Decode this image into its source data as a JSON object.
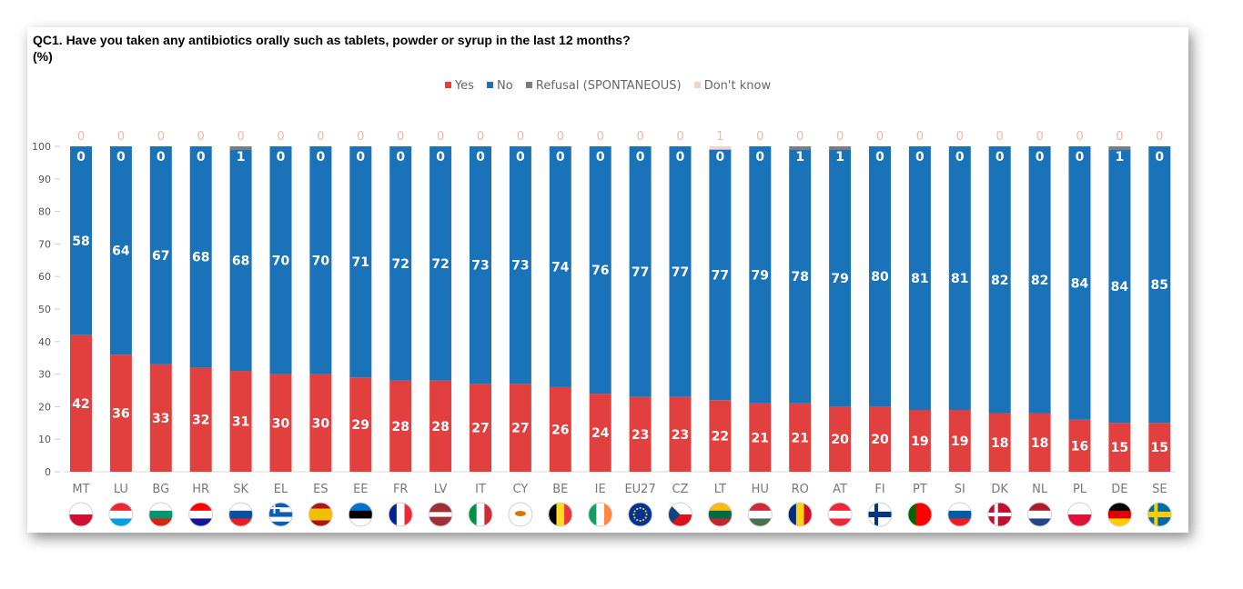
{
  "title_line1": "QC1. Have you taken any antibiotics orally such as tablets, powder or syrup in the last 12 months?",
  "title_line2": "(%)",
  "colors": {
    "yes": "#e1403f",
    "no": "#1a72b8",
    "refusal": "#7d7d7d",
    "dont_know": "#f2d2cb"
  },
  "chart_data": {
    "type": "bar",
    "stacked": true,
    "orientation": "vertical",
    "ylim": [
      0,
      100
    ],
    "yticks": [
      0,
      10,
      20,
      30,
      40,
      50,
      60,
      70,
      80,
      90,
      100
    ],
    "legend_position": "top-center",
    "categories": [
      "MT",
      "LU",
      "BG",
      "HR",
      "SK",
      "EL",
      "ES",
      "EE",
      "FR",
      "LV",
      "IT",
      "CY",
      "BE",
      "IE",
      "EU27",
      "CZ",
      "LT",
      "HU",
      "RO",
      "AT",
      "FI",
      "PT",
      "SI",
      "DK",
      "NL",
      "PL",
      "DE",
      "SE"
    ],
    "flags": [
      "Malta",
      "Luxembourg",
      "Bulgaria",
      "Croatia",
      "Slovakia",
      "Greece",
      "Spain",
      "Estonia",
      "France",
      "Latvia",
      "Italy",
      "Cyprus",
      "Belgium",
      "Ireland",
      "European Union",
      "Czechia",
      "Lithuania",
      "Hungary",
      "Romania",
      "Austria",
      "Finland",
      "Portugal",
      "Slovenia",
      "Denmark",
      "Netherlands",
      "Poland",
      "Germany",
      "Sweden"
    ],
    "series": [
      {
        "name": "Yes",
        "values": [
          42,
          36,
          33,
          32,
          31,
          30,
          30,
          29,
          28,
          28,
          27,
          27,
          26,
          24,
          23,
          23,
          22,
          21,
          21,
          20,
          20,
          19,
          19,
          18,
          18,
          16,
          15,
          15
        ]
      },
      {
        "name": "No",
        "values": [
          58,
          64,
          67,
          68,
          68,
          70,
          70,
          71,
          72,
          72,
          73,
          73,
          74,
          76,
          77,
          77,
          77,
          79,
          78,
          79,
          80,
          81,
          81,
          82,
          82,
          84,
          84,
          85
        ]
      },
      {
        "name": "Refusal (SPONTANEOUS)",
        "values": [
          0,
          0,
          0,
          0,
          1,
          0,
          0,
          0,
          0,
          0,
          0,
          0,
          0,
          0,
          0,
          0,
          0,
          0,
          1,
          1,
          0,
          0,
          0,
          0,
          0,
          0,
          1,
          0
        ]
      },
      {
        "name": "Don't know",
        "values": [
          0,
          0,
          0,
          0,
          0,
          0,
          0,
          0,
          0,
          0,
          0,
          0,
          0,
          0,
          0,
          0,
          1,
          0,
          0,
          0,
          0,
          0,
          0,
          0,
          0,
          0,
          0,
          0
        ]
      }
    ]
  }
}
